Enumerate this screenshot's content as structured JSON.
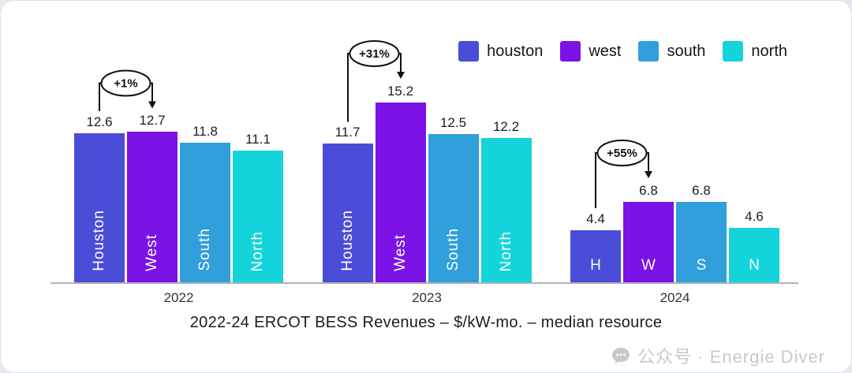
{
  "chart_data": {
    "type": "bar",
    "title": "2022-24 ERCOT BESS Revenues – $/kW-mo. – median resource",
    "categories": [
      "2022",
      "2023",
      "2024"
    ],
    "series": [
      {
        "name": "houston",
        "color": "#4A4DD8",
        "values": [
          12.6,
          11.7,
          4.4
        ],
        "bar_labels": [
          "Houston",
          "Houston",
          "H"
        ]
      },
      {
        "name": "west",
        "color": "#7B12E6",
        "values": [
          12.7,
          15.2,
          6.8
        ],
        "bar_labels": [
          "West",
          "West",
          "W"
        ]
      },
      {
        "name": "south",
        "color": "#309FDC",
        "values": [
          11.8,
          12.5,
          6.8
        ],
        "bar_labels": [
          "South",
          "South",
          "S"
        ]
      },
      {
        "name": "north",
        "color": "#14D4DB",
        "values": [
          11.1,
          12.2,
          4.6
        ],
        "bar_labels": [
          "North",
          "North",
          "N"
        ]
      }
    ],
    "annotations": [
      {
        "category": "2022",
        "label": "+1%",
        "from": "houston",
        "to": "west"
      },
      {
        "category": "2023",
        "label": "+31%",
        "from": "houston",
        "to": "west"
      },
      {
        "category": "2024",
        "label": "+55%",
        "from": "houston",
        "to": "west"
      }
    ],
    "ylim": [
      0,
      16
    ],
    "grid": false,
    "legend_position": "top-right"
  },
  "watermark": {
    "text": "公众号 · Energie Diver"
  }
}
